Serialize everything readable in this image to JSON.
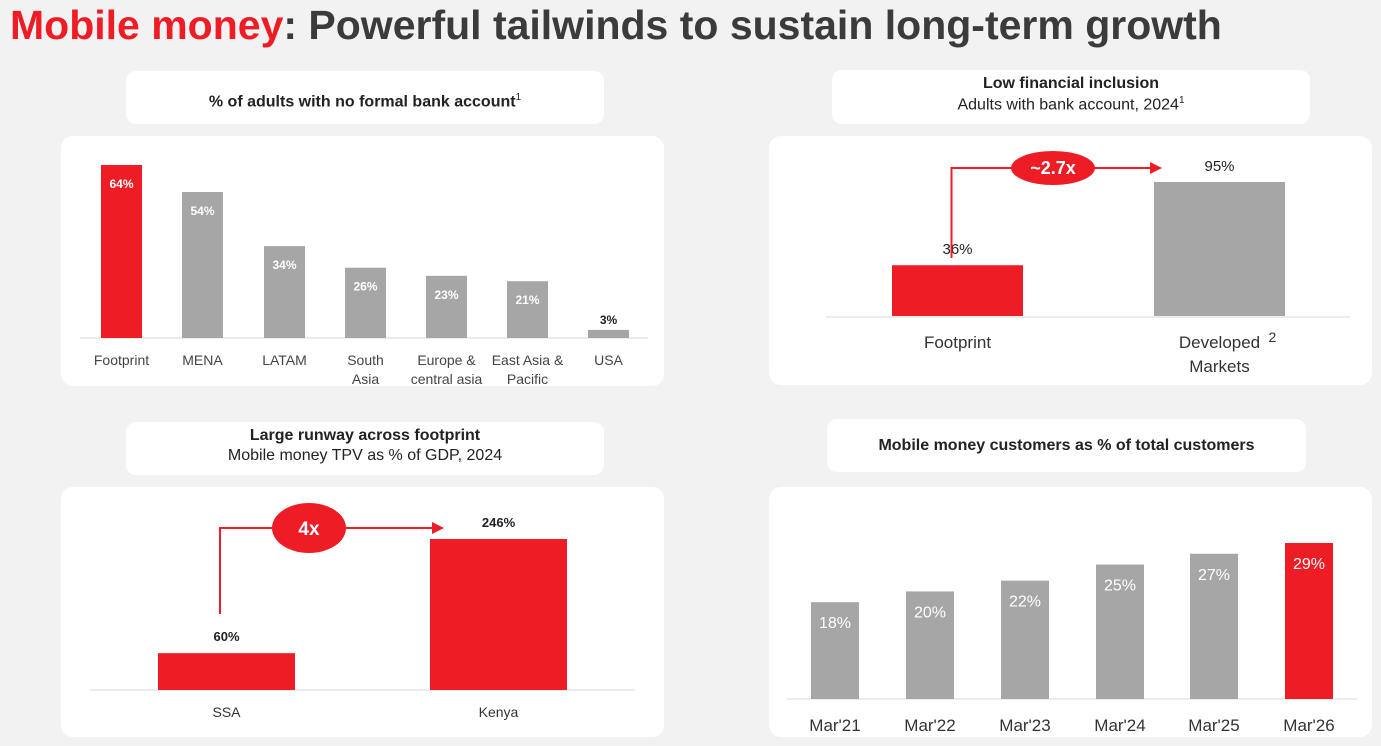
{
  "title": {
    "accent": "Mobile money",
    "rest": ": Powerful tailwinds to sustain long-term growth"
  },
  "colors": {
    "accent": "#ee1c25",
    "grey": "#a6a6a6"
  },
  "charts": {
    "no_account": {
      "header": "% of adults with no formal bank account",
      "header_sup": "1",
      "chart_data": {
        "type": "bar",
        "title": "% of adults with no formal bank account",
        "categories": [
          [
            "Footprint"
          ],
          [
            "MENA"
          ],
          [
            "LATAM"
          ],
          [
            "South",
            "Asia"
          ],
          [
            "Europe &",
            "central asia"
          ],
          [
            "East Asia &",
            "Pacific"
          ],
          [
            "USA"
          ]
        ],
        "values": [
          64,
          54,
          34,
          26,
          23,
          21,
          3
        ],
        "labels": [
          "64%",
          "54%",
          "34%",
          "26%",
          "23%",
          "21%",
          "3%"
        ],
        "highlight": [
          true,
          false,
          false,
          false,
          false,
          false,
          false
        ],
        "ylim": [
          0,
          64
        ]
      }
    },
    "inclusion": {
      "header_line1": "Low financial inclusion",
      "header_line2": "Adults with bank account, 2024",
      "header_sup": "1",
      "annotation": "~2.7x",
      "chart_data": {
        "type": "bar",
        "title": "Low financial inclusion",
        "categories": [
          "Footprint",
          "Developed Markets"
        ],
        "category_sup": [
          "",
          "2"
        ],
        "values": [
          36,
          95
        ],
        "labels": [
          "36%",
          "95%"
        ],
        "highlight": [
          true,
          false
        ],
        "ylim": [
          0,
          95
        ]
      }
    },
    "tpv": {
      "header_line1": "Large runway across footprint",
      "header_line2": "Mobile money TPV as % of GDP, 2024",
      "annotation": "4x",
      "chart_data": {
        "type": "bar",
        "title": "Large runway across footprint",
        "categories": [
          "SSA",
          "Kenya"
        ],
        "values": [
          60,
          246
        ],
        "labels": [
          "60%",
          "246%"
        ],
        "highlight": [
          true,
          true
        ],
        "ylim": [
          0,
          246
        ]
      }
    },
    "customers": {
      "header": "Mobile money customers as % of total customers",
      "chart_data": {
        "type": "bar",
        "title": "Mobile money customers as % of total customers",
        "categories": [
          "Mar'21",
          "Mar'22",
          "Mar'23",
          "Mar'24",
          "Mar'25",
          "Mar'26"
        ],
        "values": [
          18,
          20,
          22,
          25,
          27,
          29
        ],
        "labels": [
          "18%",
          "20%",
          "22%",
          "25%",
          "27%",
          "29%"
        ],
        "highlight": [
          false,
          false,
          false,
          false,
          false,
          true
        ],
        "ylim": [
          0,
          29
        ]
      }
    }
  }
}
